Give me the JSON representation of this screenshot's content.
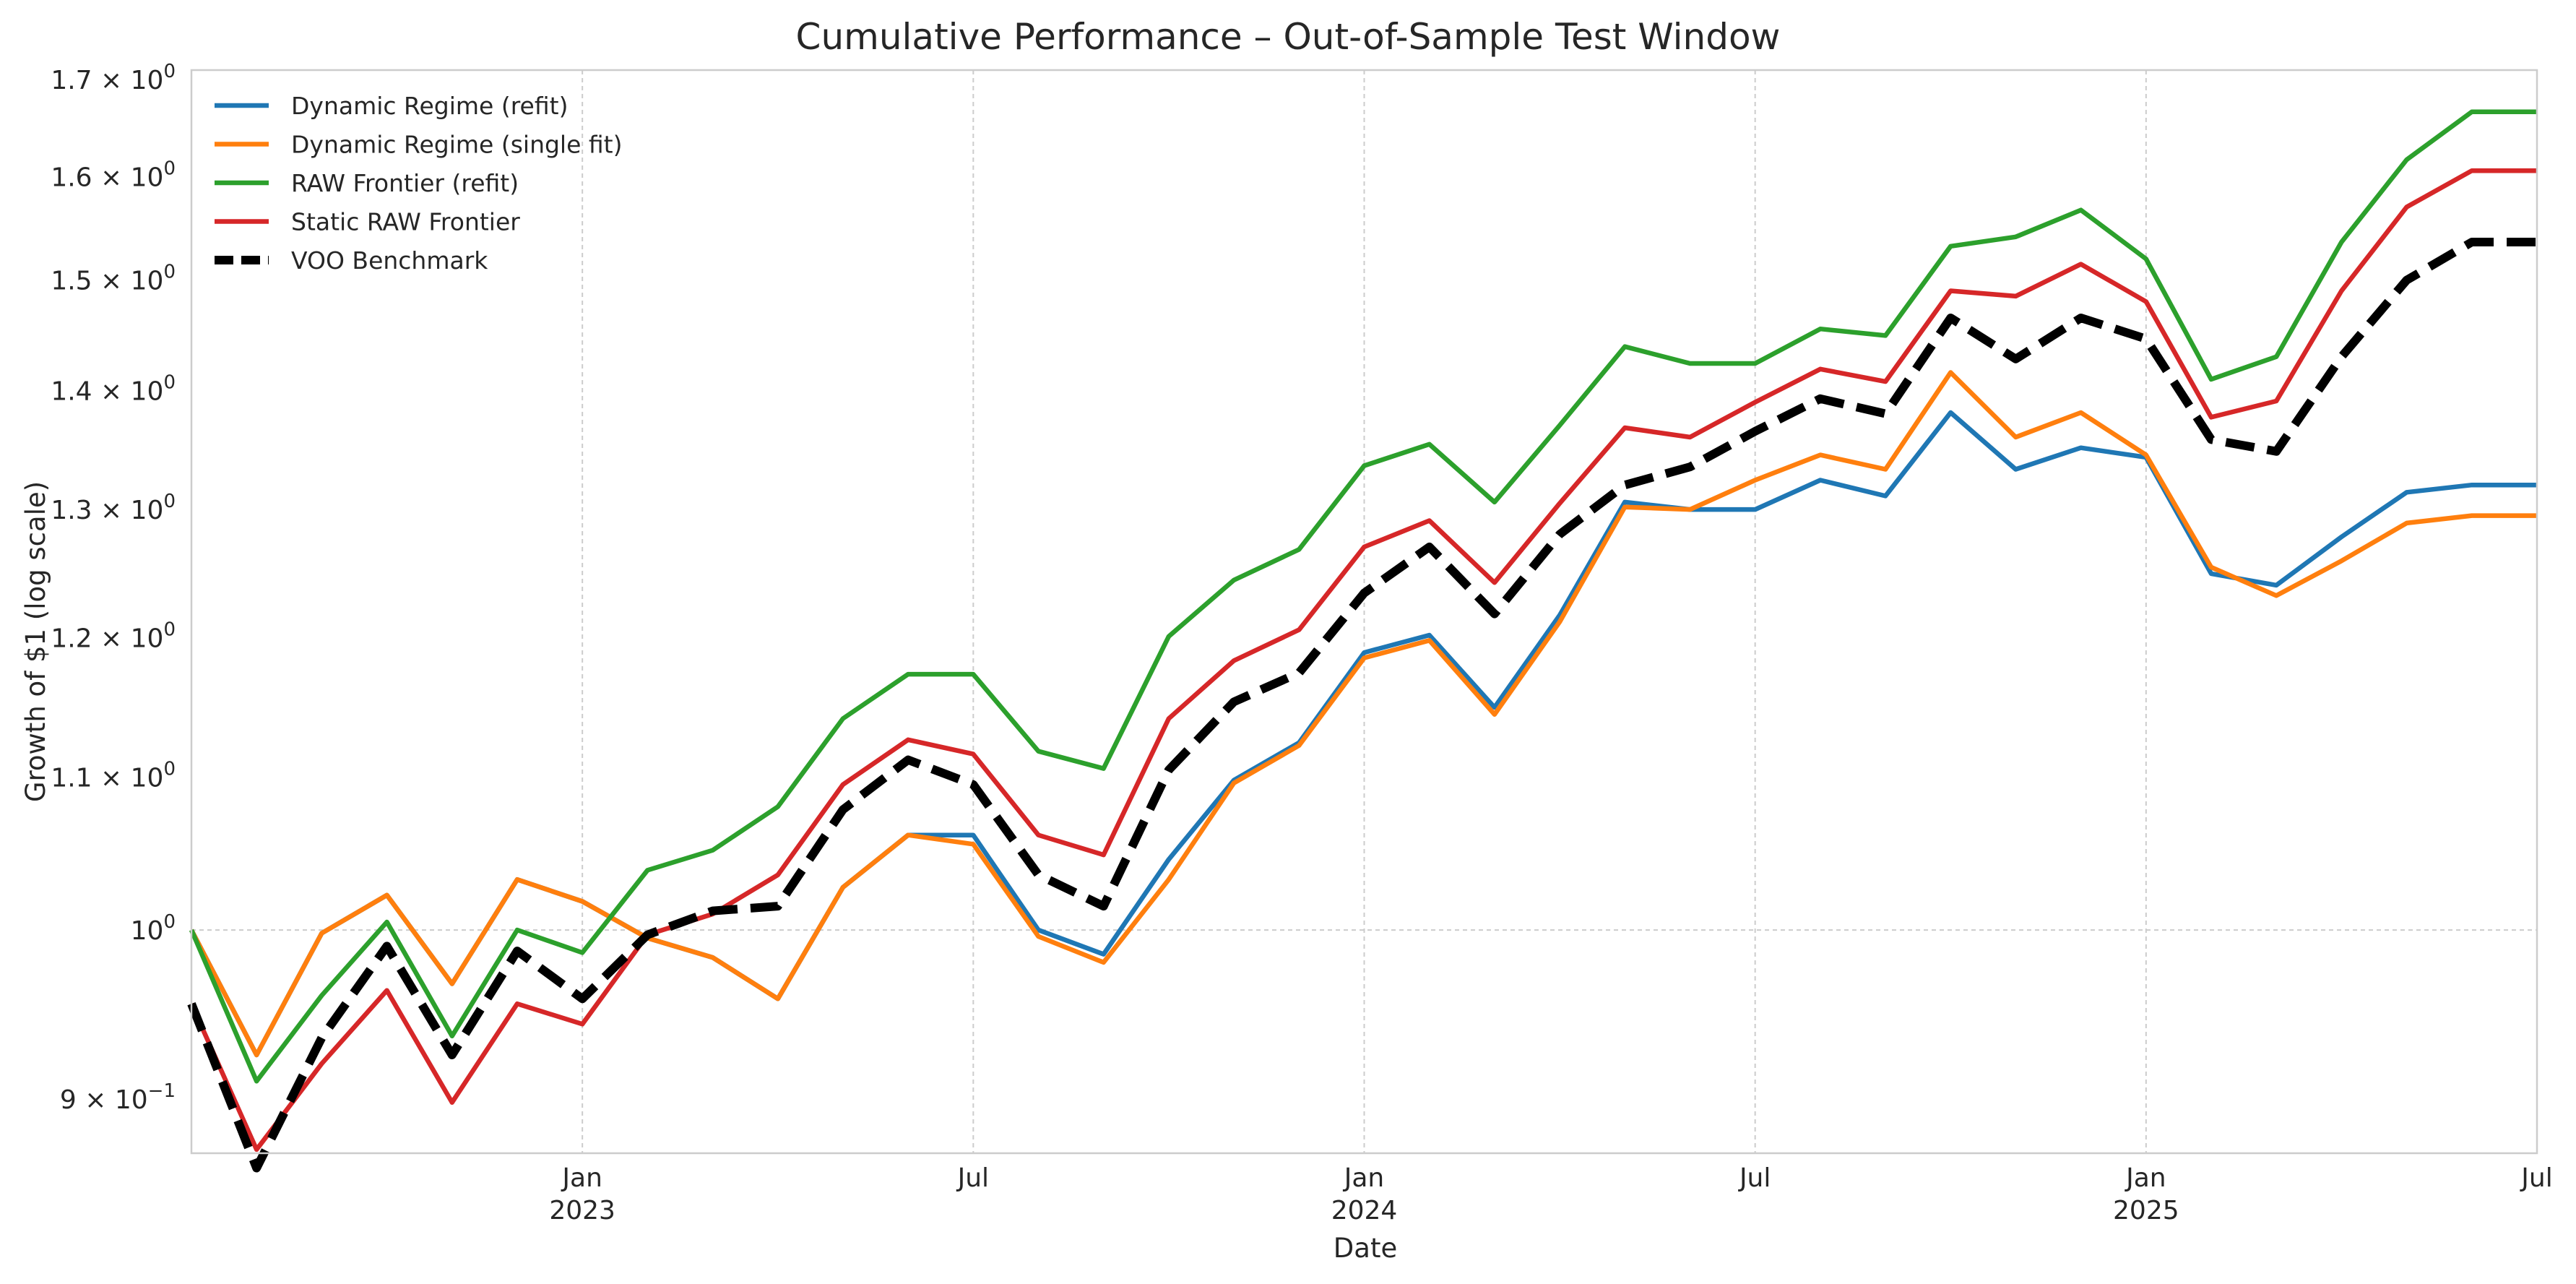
{
  "chart_data": {
    "type": "line",
    "title": "Cumulative Performance – Out-of-Sample Test Window",
    "xlabel": "Date",
    "ylabel": "Growth of $1 (log scale)",
    "yscale": "log",
    "ylim": [
      0.87,
      1.71
    ],
    "xlim": [
      "2022-07",
      "2025-07"
    ],
    "grid": true,
    "legend_position": "top-left",
    "x": [
      "2022-07",
      "2022-08",
      "2022-09",
      "2022-10",
      "2022-11",
      "2022-12",
      "2023-01",
      "2023-02",
      "2023-03",
      "2023-04",
      "2023-05",
      "2023-06",
      "2023-07",
      "2023-08",
      "2023-09",
      "2023-10",
      "2023-11",
      "2023-12",
      "2024-01",
      "2024-02",
      "2024-03",
      "2024-04",
      "2024-05",
      "2024-06",
      "2024-07",
      "2024-08",
      "2024-09",
      "2024-10",
      "2024-11",
      "2024-12",
      "2025-01",
      "2025-02",
      "2025-03",
      "2025-04",
      "2025-05",
      "2025-06",
      "2025-07"
    ],
    "x_ticks": [
      {
        "date": "2023-01",
        "label": "Jan",
        "year": "2023"
      },
      {
        "date": "2023-07",
        "label": "Jul",
        "year": ""
      },
      {
        "date": "2024-01",
        "label": "Jan",
        "year": "2024"
      },
      {
        "date": "2024-07",
        "label": "Jul",
        "year": ""
      },
      {
        "date": "2025-01",
        "label": "Jan",
        "year": "2025"
      },
      {
        "date": "2025-07",
        "label": "Jul",
        "year": ""
      }
    ],
    "y_ticks": [
      {
        "value": 0.9,
        "mantissa": "9 × 10",
        "exponent": "−1"
      },
      {
        "value": 1.0,
        "mantissa": "10",
        "exponent": "0"
      },
      {
        "value": 1.1,
        "mantissa": "1.1 × 10",
        "exponent": "0"
      },
      {
        "value": 1.2,
        "mantissa": "1.2 × 10",
        "exponent": "0"
      },
      {
        "value": 1.3,
        "mantissa": "1.3 × 10",
        "exponent": "0"
      },
      {
        "value": 1.4,
        "mantissa": "1.4 × 10",
        "exponent": "0"
      },
      {
        "value": 1.5,
        "mantissa": "1.5 × 10",
        "exponent": "0"
      },
      {
        "value": 1.6,
        "mantissa": "1.6 × 10",
        "exponent": "0"
      },
      {
        "value": 1.7,
        "mantissa": "1.7 × 10",
        "exponent": "0"
      }
    ],
    "series": [
      {
        "name": "Dynamic Regime (refit)",
        "color": "#1f77b4",
        "style": "solid",
        "values": [
          1.0,
          0.925,
          0.998,
          1.022,
          0.967,
          1.032,
          1.018,
          0.995,
          0.983,
          0.958,
          1.027,
          1.061,
          1.061,
          1.0,
          0.985,
          1.045,
          1.098,
          1.124,
          1.189,
          1.202,
          1.149,
          1.217,
          1.306,
          1.3,
          1.3,
          1.324,
          1.311,
          1.381,
          1.333,
          1.351,
          1.343,
          1.249,
          1.24,
          1.278,
          1.314,
          1.32,
          1.32
        ]
      },
      {
        "name": "Dynamic Regime (single fit)",
        "color": "#ff7f0e",
        "style": "solid",
        "values": [
          1.0,
          0.925,
          0.998,
          1.022,
          0.967,
          1.032,
          1.018,
          0.995,
          0.983,
          0.958,
          1.027,
          1.061,
          1.055,
          0.996,
          0.98,
          1.032,
          1.096,
          1.122,
          1.185,
          1.198,
          1.144,
          1.212,
          1.302,
          1.3,
          1.324,
          1.345,
          1.333,
          1.416,
          1.36,
          1.381,
          1.345,
          1.254,
          1.232,
          1.259,
          1.289,
          1.295,
          1.295
        ]
      },
      {
        "name": "RAW Frontier (refit)",
        "color": "#2ca02c",
        "style": "solid",
        "values": [
          1.0,
          0.91,
          0.96,
          1.005,
          0.936,
          1.0,
          0.986,
          1.038,
          1.051,
          1.08,
          1.141,
          1.173,
          1.173,
          1.118,
          1.106,
          1.201,
          1.244,
          1.268,
          1.336,
          1.354,
          1.306,
          1.37,
          1.439,
          1.424,
          1.424,
          1.455,
          1.449,
          1.532,
          1.541,
          1.567,
          1.52,
          1.41,
          1.43,
          1.536,
          1.617,
          1.666,
          1.666
        ]
      },
      {
        "name": "Static RAW Frontier",
        "color": "#d62728",
        "style": "solid",
        "values": [
          0.955,
          0.872,
          0.92,
          0.963,
          0.898,
          0.955,
          0.943,
          0.997,
          1.01,
          1.035,
          1.095,
          1.126,
          1.116,
          1.061,
          1.048,
          1.141,
          1.183,
          1.206,
          1.27,
          1.291,
          1.242,
          1.305,
          1.368,
          1.36,
          1.39,
          1.419,
          1.408,
          1.49,
          1.485,
          1.515,
          1.48,
          1.377,
          1.391,
          1.49,
          1.57,
          1.606,
          1.606
        ]
      },
      {
        "name": "VOO Benchmark",
        "color": "#000000",
        "style": "dashed",
        "values": [
          0.955,
          0.862,
          0.935,
          0.99,
          0.925,
          0.987,
          0.958,
          0.997,
          1.012,
          1.015,
          1.078,
          1.112,
          1.095,
          1.035,
          1.015,
          1.105,
          1.153,
          1.174,
          1.234,
          1.27,
          1.218,
          1.28,
          1.32,
          1.335,
          1.365,
          1.393,
          1.38,
          1.465,
          1.428,
          1.465,
          1.446,
          1.358,
          1.348,
          1.43,
          1.5,
          1.536,
          1.536
        ]
      }
    ]
  }
}
